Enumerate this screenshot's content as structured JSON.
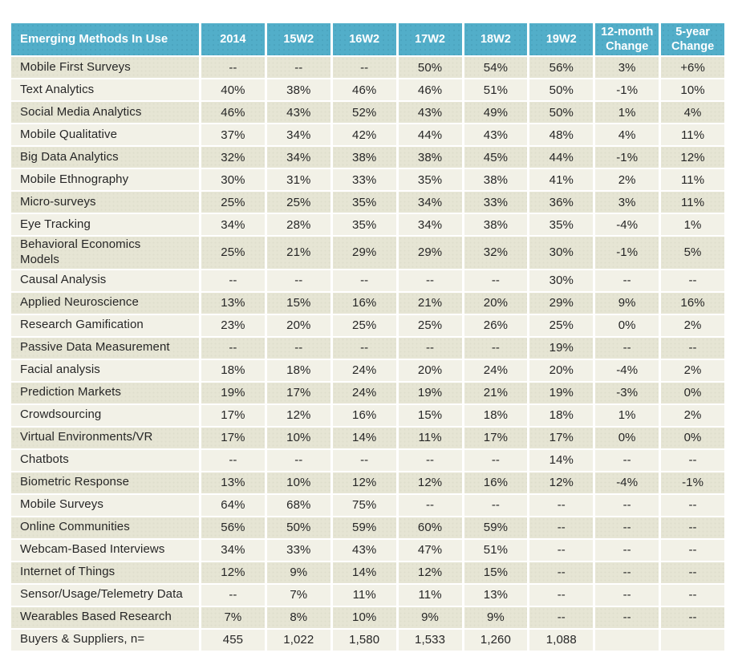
{
  "table": {
    "header": {
      "label_column": "Emerging Methods In Use",
      "columns": [
        "2014",
        "15W2",
        "16W2",
        "17W2",
        "18W2",
        "19W2",
        "12-month Change",
        "5-year Change"
      ]
    },
    "rows": [
      {
        "label": "Mobile First Surveys",
        "values": [
          "--",
          "--",
          "--",
          "50%",
          "54%",
          "56%",
          "3%",
          "+6%"
        ]
      },
      {
        "label": "Text Analytics",
        "values": [
          "40%",
          "38%",
          "46%",
          "46%",
          "51%",
          "50%",
          "-1%",
          "10%"
        ]
      },
      {
        "label": "Social Media Analytics",
        "values": [
          "46%",
          "43%",
          "52%",
          "43%",
          "49%",
          "50%",
          "1%",
          "4%"
        ]
      },
      {
        "label": "Mobile Qualitative",
        "values": [
          "37%",
          "34%",
          "42%",
          "44%",
          "43%",
          "48%",
          "4%",
          "11%"
        ]
      },
      {
        "label": "Big Data Analytics",
        "values": [
          "32%",
          "34%",
          "38%",
          "38%",
          "45%",
          "44%",
          "-1%",
          "12%"
        ]
      },
      {
        "label": "Mobile Ethnography",
        "values": [
          "30%",
          "31%",
          "33%",
          "35%",
          "38%",
          "41%",
          "2%",
          "11%"
        ]
      },
      {
        "label": "Micro-surveys",
        "values": [
          "25%",
          "25%",
          "35%",
          "34%",
          "33%",
          "36%",
          "3%",
          "11%"
        ]
      },
      {
        "label": "Eye Tracking",
        "values": [
          "34%",
          "28%",
          "35%",
          "34%",
          "38%",
          "35%",
          "-4%",
          "1%"
        ]
      },
      {
        "label": "Behavioral Economics\nModels",
        "values": [
          "25%",
          "21%",
          "29%",
          "29%",
          "32%",
          "30%",
          "-1%",
          "5%"
        ]
      },
      {
        "label": "Causal Analysis",
        "values": [
          "--",
          "--",
          "--",
          "--",
          "--",
          "30%",
          "--",
          "--"
        ]
      },
      {
        "label": "Applied Neuroscience",
        "values": [
          "13%",
          "15%",
          "16%",
          "21%",
          "20%",
          "29%",
          "9%",
          "16%"
        ]
      },
      {
        "label": "Research Gamification",
        "values": [
          "23%",
          "20%",
          "25%",
          "25%",
          "26%",
          "25%",
          "0%",
          "2%"
        ]
      },
      {
        "label": "Passive Data Measurement",
        "values": [
          "--",
          "--",
          "--",
          "--",
          "--",
          "19%",
          "--",
          "--"
        ]
      },
      {
        "label": "Facial analysis",
        "values": [
          "18%",
          "18%",
          "24%",
          "20%",
          "24%",
          "20%",
          "-4%",
          "2%"
        ]
      },
      {
        "label": "Prediction Markets",
        "values": [
          "19%",
          "17%",
          "24%",
          "19%",
          "21%",
          "19%",
          "-3%",
          "0%"
        ]
      },
      {
        "label": "Crowdsourcing",
        "values": [
          "17%",
          "12%",
          "16%",
          "15%",
          "18%",
          "18%",
          "1%",
          "2%"
        ]
      },
      {
        "label": "Virtual Environments/VR",
        "values": [
          "17%",
          "10%",
          "14%",
          "11%",
          "17%",
          "17%",
          "0%",
          "0%"
        ]
      },
      {
        "label": "Chatbots",
        "values": [
          "--",
          "--",
          "--",
          "--",
          "--",
          "14%",
          "--",
          "--"
        ]
      },
      {
        "label": "Biometric Response",
        "values": [
          "13%",
          "10%",
          "12%",
          "12%",
          "16%",
          "12%",
          "-4%",
          "-1%"
        ]
      },
      {
        "label": "Mobile Surveys",
        "values": [
          "64%",
          "68%",
          "75%",
          "--",
          "--",
          "--",
          "--",
          "--"
        ]
      },
      {
        "label": "Online Communities",
        "values": [
          "56%",
          "50%",
          "59%",
          "60%",
          "59%",
          "--",
          "--",
          "--"
        ]
      },
      {
        "label": "Webcam-Based Interviews",
        "values": [
          "34%",
          "33%",
          "43%",
          "47%",
          "51%",
          "--",
          "--",
          "--"
        ]
      },
      {
        "label": "Internet of Things",
        "values": [
          "12%",
          "9%",
          "14%",
          "12%",
          "15%",
          "--",
          "--",
          "--"
        ]
      },
      {
        "label": "Sensor/Usage/Telemetry Data",
        "values": [
          "--",
          "7%",
          "11%",
          "11%",
          "13%",
          "--",
          "--",
          "--"
        ]
      },
      {
        "label": "Wearables Based Research",
        "values": [
          "7%",
          "8%",
          "10%",
          "9%",
          "9%",
          "--",
          "--",
          "--"
        ]
      },
      {
        "label": "Buyers & Suppliers, n=",
        "values": [
          "455",
          "1,022",
          "1,580",
          "1,533",
          "1,260",
          "1,088",
          "",
          ""
        ]
      }
    ]
  },
  "colors": {
    "header_bg": "#52aec9",
    "header_text": "#ffffff",
    "row_dark": "#e6e5d4",
    "row_light": "#f2f1e7",
    "text": "#262626"
  }
}
